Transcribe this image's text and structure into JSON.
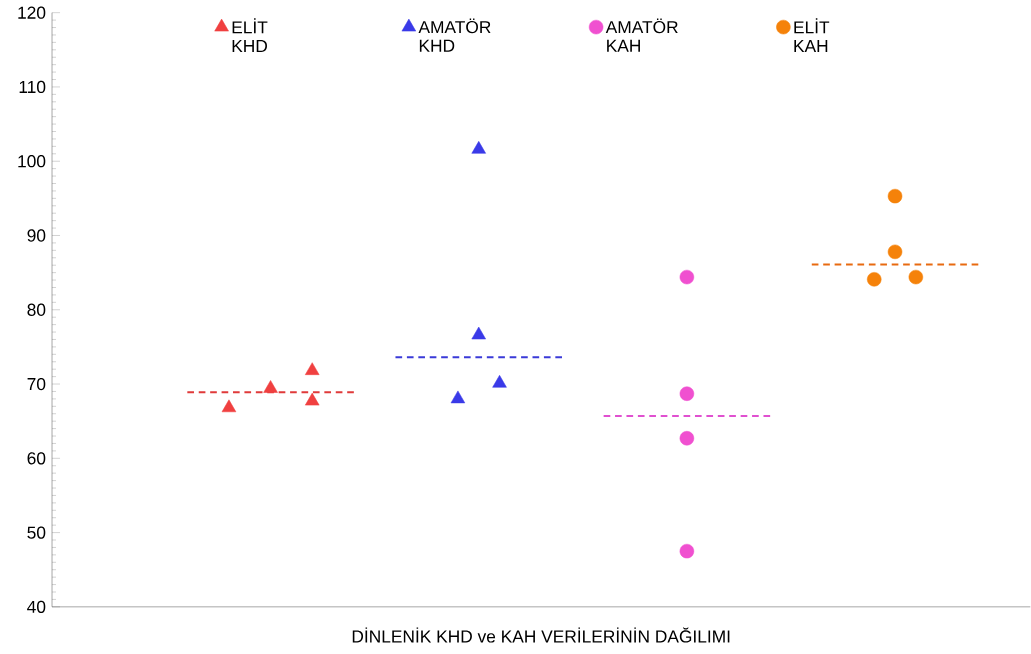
{
  "chart_data": {
    "type": "scatter",
    "xlabel": "DİNLENİK KHD ve KAH VERİLERİNİN DAĞILIMI",
    "categories": [
      null,
      null,
      null,
      null,
      null,
      null,
      null,
      null,
      null,
      null,
      null,
      null,
      null,
      null,
      null,
      null,
      null,
      null,
      null,
      null,
      null,
      null,
      null,
      null,
      null,
      null,
      null,
      null,
      null,
      null,
      null,
      null,
      null,
      null,
      null,
      null,
      null,
      null,
      null,
      null,
      null,
      null,
      null,
      null,
      null,
      null,
      null
    ],
    "ylim": [
      40,
      120
    ],
    "yticks": [
      40,
      50,
      60,
      70,
      80,
      90,
      100,
      110,
      120
    ],
    "tick_labels": "y",
    "grid": false,
    "legend": "top",
    "series": [
      {
        "name": "ELİT KHD",
        "color": "#f04040",
        "marker": "triangle",
        "values": [
          null,
          null,
          null,
          null,
          null,
          null,
          null,
          null,
          66.8,
          null,
          69.4,
          null,
          71.8,
          null,
          null,
          null,
          null,
          null,
          null,
          null,
          null,
          null,
          null,
          null,
          null,
          null,
          null,
          null,
          null,
          null,
          null,
          null,
          null,
          null,
          null,
          null,
          null,
          null,
          null,
          null,
          null,
          null,
          null,
          null,
          null,
          null,
          null
        ]
      },
      {
        "color": "#f04040",
        "marker": "triangle",
        "values": [
          null,
          null,
          null,
          null,
          null,
          null,
          null,
          null,
          null,
          null,
          null,
          null,
          67.7,
          null,
          null,
          null,
          null,
          null,
          null,
          null,
          null,
          null,
          null,
          null,
          null,
          null,
          null,
          null,
          null,
          null,
          null,
          null,
          null,
          null,
          null,
          null,
          null,
          null,
          null,
          null,
          null,
          null,
          null,
          null,
          null,
          null,
          null
        ]
      },
      {
        "name": "AMATÖR KHD",
        "color": "#3a3ae8",
        "marker": "triangle",
        "values": [
          null,
          null,
          null,
          null,
          null,
          null,
          null,
          null,
          null,
          null,
          null,
          null,
          null,
          null,
          null,
          null,
          null,
          null,
          null,
          68.0,
          101.6,
          70.1,
          null,
          null,
          null,
          null,
          null,
          null,
          null,
          null,
          null,
          null,
          null,
          null,
          null,
          null,
          null,
          null,
          null,
          null,
          null,
          null,
          null,
          null,
          null,
          null,
          null
        ]
      },
      {
        "color": "#3a3ae8",
        "marker": "triangle",
        "values": [
          null,
          null,
          null,
          null,
          null,
          null,
          null,
          null,
          null,
          null,
          null,
          null,
          null,
          null,
          null,
          null,
          null,
          null,
          null,
          null,
          76.6,
          null,
          null,
          null,
          null,
          null,
          null,
          null,
          null,
          null,
          null,
          null,
          null,
          null,
          null,
          null,
          null,
          null,
          null,
          null,
          null,
          null,
          null,
          null,
          null,
          null,
          null
        ]
      },
      {
        "name": "AMATÖR KAH",
        "color": "#f050d0",
        "marker": "circle",
        "values": [
          null,
          null,
          null,
          null,
          null,
          null,
          null,
          null,
          null,
          null,
          null,
          null,
          null,
          null,
          null,
          null,
          null,
          null,
          null,
          null,
          null,
          null,
          null,
          null,
          null,
          null,
          null,
          null,
          null,
          null,
          84.4,
          null,
          null,
          null,
          null,
          null,
          null,
          null,
          null,
          null,
          null,
          null,
          null,
          null,
          null,
          null,
          null
        ]
      },
      {
        "color": "#f050d0",
        "marker": "circle",
        "values": [
          null,
          null,
          null,
          null,
          null,
          null,
          null,
          null,
          null,
          null,
          null,
          null,
          null,
          null,
          null,
          null,
          null,
          null,
          null,
          null,
          null,
          null,
          null,
          null,
          null,
          null,
          null,
          null,
          null,
          null,
          68.7,
          null,
          null,
          null,
          null,
          null,
          null,
          null,
          null,
          null,
          null,
          null,
          null,
          null,
          null,
          null,
          null
        ]
      },
      {
        "color": "#f050d0",
        "marker": "circle",
        "values": [
          null,
          null,
          null,
          null,
          null,
          null,
          null,
          null,
          null,
          null,
          null,
          null,
          null,
          null,
          null,
          null,
          null,
          null,
          null,
          null,
          null,
          null,
          null,
          null,
          null,
          null,
          null,
          null,
          null,
          null,
          62.7,
          null,
          null,
          null,
          null,
          null,
          null,
          null,
          null,
          null,
          null,
          null,
          null,
          null,
          null,
          null,
          null
        ]
      },
      {
        "color": "#f050d0",
        "marker": "circle",
        "values": [
          null,
          null,
          null,
          null,
          null,
          null,
          null,
          null,
          null,
          null,
          null,
          null,
          null,
          null,
          null,
          null,
          null,
          null,
          null,
          null,
          null,
          null,
          null,
          null,
          null,
          null,
          null,
          null,
          null,
          null,
          47.5,
          null,
          null,
          null,
          null,
          null,
          null,
          null,
          null,
          null,
          null,
          null,
          null,
          null,
          null,
          null,
          null
        ]
      },
      {
        "name": "ELİT KAH",
        "color": "#f5820a",
        "marker": "circle",
        "values": [
          null,
          null,
          null,
          null,
          null,
          null,
          null,
          null,
          null,
          null,
          null,
          null,
          null,
          null,
          null,
          null,
          null,
          null,
          null,
          null,
          null,
          null,
          null,
          null,
          null,
          null,
          null,
          null,
          null,
          null,
          null,
          null,
          null,
          null,
          null,
          null,
          null,
          null,
          null,
          84.1,
          95.3,
          84.4,
          null,
          null,
          null,
          null,
          null
        ]
      },
      {
        "color": "#f5820a",
        "marker": "circle",
        "values": [
          null,
          null,
          null,
          null,
          null,
          null,
          null,
          null,
          null,
          null,
          null,
          null,
          null,
          null,
          null,
          null,
          null,
          null,
          null,
          null,
          null,
          null,
          null,
          null,
          null,
          null,
          null,
          null,
          null,
          null,
          null,
          null,
          null,
          null,
          null,
          null,
          null,
          null,
          null,
          null,
          87.8,
          null,
          null,
          null,
          null,
          null,
          null
        ]
      },
      {
        "type": "line",
        "color": "#e03a3a",
        "line_style": "dashed",
        "values": [
          null,
          null,
          null,
          null,
          null,
          null,
          68.9,
          68.9,
          68.9,
          68.9,
          68.9,
          68.9,
          68.9,
          68.9,
          68.9,
          null,
          null,
          null,
          null,
          null,
          null,
          null,
          null,
          null,
          null,
          null,
          null,
          null,
          null,
          null,
          null,
          null,
          null,
          null,
          null,
          null,
          null,
          null,
          null,
          null,
          null,
          null,
          null,
          null,
          null,
          null,
          null
        ]
      },
      {
        "type": "line",
        "color": "#3a3ad8",
        "line_style": "dashed",
        "values": [
          null,
          null,
          null,
          null,
          null,
          null,
          null,
          null,
          null,
          null,
          null,
          null,
          null,
          null,
          null,
          null,
          73.6,
          73.6,
          73.6,
          73.6,
          73.6,
          73.6,
          73.6,
          73.6,
          73.6,
          null,
          null,
          null,
          null,
          null,
          null,
          null,
          null,
          null,
          null,
          null,
          null,
          null,
          null,
          null,
          null,
          null,
          null,
          null,
          null,
          null,
          null
        ]
      },
      {
        "type": "line",
        "color": "#e050d0",
        "line_style": "dashed",
        "values": [
          null,
          null,
          null,
          null,
          null,
          null,
          null,
          null,
          null,
          null,
          null,
          null,
          null,
          null,
          null,
          null,
          null,
          null,
          null,
          null,
          null,
          null,
          null,
          null,
          null,
          null,
          65.7,
          65.7,
          65.7,
          65.7,
          65.7,
          65.7,
          65.7,
          65.7,
          65.7,
          null,
          null,
          null,
          null,
          null,
          null,
          null,
          null,
          null,
          null,
          null,
          null
        ]
      },
      {
        "type": "line",
        "color": "#e86a10",
        "line_style": "dashed",
        "values": [
          null,
          null,
          null,
          null,
          null,
          null,
          null,
          null,
          null,
          null,
          null,
          null,
          null,
          null,
          null,
          null,
          null,
          null,
          null,
          null,
          null,
          null,
          null,
          null,
          null,
          null,
          null,
          null,
          null,
          null,
          null,
          null,
          null,
          null,
          null,
          null,
          86.1,
          86.1,
          86.1,
          86.1,
          86.1,
          86.1,
          86.1,
          86.1,
          86.1,
          null,
          null
        ]
      }
    ]
  }
}
